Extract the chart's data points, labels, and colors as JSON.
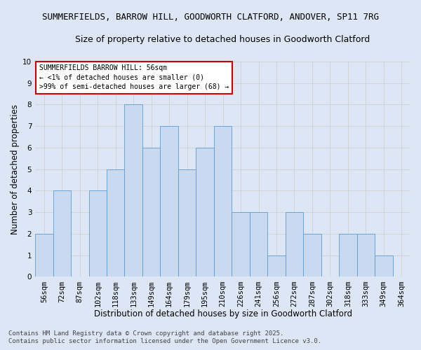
{
  "title1": "SUMMERFIELDS, BARROW HILL, GOODWORTH CLATFORD, ANDOVER, SP11 7RG",
  "title2": "Size of property relative to detached houses in Goodworth Clatford",
  "xlabel": "Distribution of detached houses by size in Goodworth Clatford",
  "ylabel": "Number of detached properties",
  "categories": [
    "56sqm",
    "72sqm",
    "87sqm",
    "102sqm",
    "118sqm",
    "133sqm",
    "149sqm",
    "164sqm",
    "179sqm",
    "195sqm",
    "210sqm",
    "226sqm",
    "241sqm",
    "256sqm",
    "272sqm",
    "287sqm",
    "302sqm",
    "318sqm",
    "333sqm",
    "349sqm",
    "364sqm"
  ],
  "values": [
    2,
    4,
    0,
    4,
    5,
    8,
    6,
    7,
    5,
    6,
    7,
    3,
    3,
    1,
    3,
    2,
    0,
    2,
    2,
    1,
    0
  ],
  "bar_color": "#c9d9f0",
  "bar_edge_color": "#5b9bd5",
  "grid_color": "#d0d0d0",
  "annotation_box_text": "SUMMERFIELDS BARROW HILL: 56sqm\n← <1% of detached houses are smaller (0)\n>99% of semi-detached houses are larger (68) →",
  "annotation_box_color": "#cc0000",
  "annotation_fill_color": "#ffffff",
  "footer1": "Contains HM Land Registry data © Crown copyright and database right 2025.",
  "footer2": "Contains public sector information licensed under the Open Government Licence v3.0.",
  "bg_color": "#dce6f5",
  "plot_bg_color": "#dce6f5",
  "ylim": [
    0,
    10
  ],
  "title1_fontsize": 9,
  "title2_fontsize": 9,
  "xlabel_fontsize": 8.5,
  "ylabel_fontsize": 8.5,
  "tick_fontsize": 7.5,
  "footer_fontsize": 6.5,
  "annot_fontsize": 7
}
